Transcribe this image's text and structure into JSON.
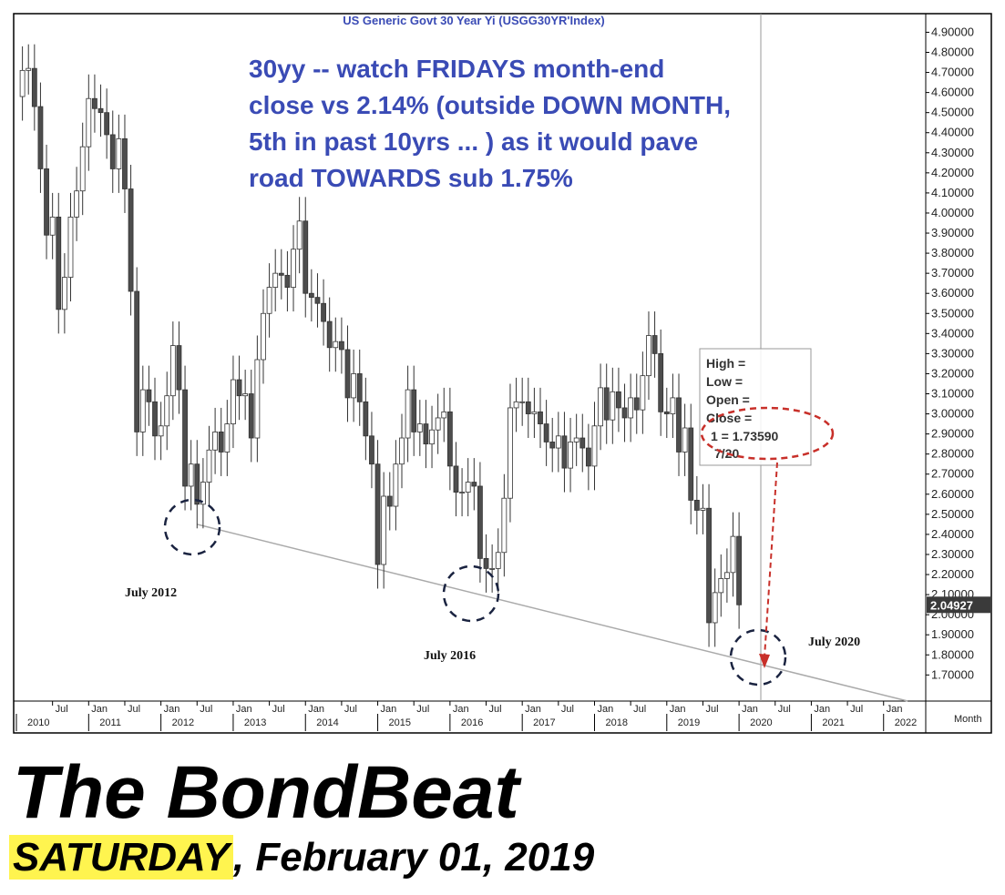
{
  "chart_data": {
    "type": "candlestick",
    "title": "US Generic Govt 30 Year Yi (USGG30YR'Index)",
    "xlabel": "Month",
    "annotation_lines": [
      "30yy -- watch FRIDAYS month-end",
      "close vs 2.14% (outside DOWN MONTH,",
      "5th in past 10yrs ... ) as it would pave",
      "road TOWARDS sub 1.75%"
    ],
    "labels": [
      "July 2012",
      "July 2016",
      "July 2020"
    ],
    "info_box": [
      "High =",
      "Low =",
      "Open =",
      "Close =",
      "1 = 1.73590",
      "7/20"
    ],
    "up_color": "#ffffff",
    "down_color": "#4d4d4d",
    "trendline_color": "#aaaaaa",
    "x": [
      "2010-02",
      "2010-03",
      "2010-04",
      "2010-05",
      "2010-06",
      "2010-07",
      "2010-08",
      "2010-09",
      "2010-10",
      "2010-11",
      "2010-12",
      "2011-01",
      "2011-02",
      "2011-03",
      "2011-04",
      "2011-05",
      "2011-06",
      "2011-07",
      "2011-08",
      "2011-09",
      "2011-10",
      "2011-11",
      "2011-12",
      "2012-01",
      "2012-02",
      "2012-03",
      "2012-04",
      "2012-05",
      "2012-06",
      "2012-07",
      "2012-08",
      "2012-09",
      "2012-10",
      "2012-11",
      "2012-12",
      "2013-01",
      "2013-02",
      "2013-03",
      "2013-04",
      "2013-05",
      "2013-06",
      "2013-07",
      "2013-08",
      "2013-09",
      "2013-10",
      "2013-11",
      "2013-12",
      "2014-01",
      "2014-02",
      "2014-03",
      "2014-04",
      "2014-05",
      "2014-06",
      "2014-07",
      "2014-08",
      "2014-09",
      "2014-10",
      "2014-11",
      "2014-12",
      "2015-01",
      "2015-02",
      "2015-03",
      "2015-04",
      "2015-05",
      "2015-06",
      "2015-07",
      "2015-08",
      "2015-09",
      "2015-10",
      "2015-11",
      "2015-12",
      "2016-01",
      "2016-02",
      "2016-03",
      "2016-04",
      "2016-05",
      "2016-06",
      "2016-07",
      "2016-08",
      "2016-09",
      "2016-10",
      "2016-11",
      "2016-12",
      "2017-01",
      "2017-02",
      "2017-03",
      "2017-04",
      "2017-05",
      "2017-06",
      "2017-07",
      "2017-08",
      "2017-09",
      "2017-10",
      "2017-11",
      "2017-12",
      "2018-01",
      "2018-02",
      "2018-03",
      "2018-04",
      "2018-05",
      "2018-06",
      "2018-07",
      "2018-08",
      "2018-09",
      "2018-10",
      "2018-11",
      "2018-12",
      "2019-01",
      "2019-02",
      "2019-03",
      "2019-04",
      "2019-05",
      "2019-06",
      "2019-07",
      "2019-08",
      "2019-09",
      "2019-10",
      "2019-11",
      "2019-12",
      "2020-01"
    ],
    "open": [
      4.58,
      4.71,
      4.72,
      4.53,
      4.22,
      3.89,
      3.98,
      3.52,
      3.68,
      3.98,
      4.11,
      4.33,
      4.57,
      4.52,
      4.5,
      4.39,
      4.22,
      4.37,
      4.12,
      3.61,
      2.91,
      3.12,
      3.06,
      2.89,
      2.94,
      3.09,
      3.34,
      3.12,
      2.64,
      2.75,
      2.55,
      2.66,
      2.82,
      2.91,
      2.81,
      2.95,
      3.17,
      3.09,
      3.1,
      2.88,
      3.27,
      3.5,
      3.63,
      3.7,
      3.69,
      3.63,
      3.82,
      3.96,
      3.6,
      3.58,
      3.55,
      3.46,
      3.33,
      3.36,
      3.32,
      3.08,
      3.2,
      3.06,
      2.89,
      2.75,
      2.25,
      2.59,
      2.54,
      2.75,
      2.88,
      3.12,
      2.91,
      2.95,
      2.85,
      2.92,
      2.98,
      3.01,
      2.74,
      2.61,
      2.61,
      2.66,
      2.64,
      2.28,
      2.23,
      2.23,
      2.31,
      2.58,
      3.03,
      3.06,
      3.06,
      3.0,
      3.01,
      2.95,
      2.86,
      2.83,
      2.89,
      2.73,
      2.86,
      2.88,
      2.83,
      2.74,
      2.94,
      3.13,
      2.97,
      3.11,
      3.03,
      2.98,
      3.08,
      3.02,
      3.19,
      3.39,
      3.3,
      3.01,
      3.0,
      3.08,
      2.81,
      2.93,
      2.57,
      2.52,
      2.53,
      1.96,
      2.11,
      2.18,
      2.21,
      2.39
    ],
    "high": [
      4.83,
      4.84,
      4.84,
      4.65,
      4.34,
      4.1,
      4.1,
      3.8,
      4.1,
      4.23,
      4.45,
      4.69,
      4.69,
      4.64,
      4.62,
      4.51,
      4.49,
      4.49,
      4.24,
      3.73,
      3.24,
      3.24,
      3.18,
      3.06,
      3.21,
      3.46,
      3.46,
      3.24,
      2.87,
      2.87,
      2.78,
      2.94,
      3.03,
      3.03,
      3.07,
      3.29,
      3.29,
      3.22,
      3.22,
      3.39,
      3.62,
      3.75,
      3.82,
      3.82,
      3.81,
      3.94,
      4.08,
      4.08,
      3.72,
      3.7,
      3.67,
      3.58,
      3.48,
      3.48,
      3.44,
      3.32,
      3.32,
      3.18,
      3.01,
      2.87,
      2.71,
      2.71,
      2.87,
      3.0,
      3.24,
      3.24,
      3.07,
      3.07,
      3.04,
      3.1,
      3.13,
      3.13,
      2.86,
      2.73,
      2.78,
      2.78,
      2.76,
      2.4,
      2.35,
      2.43,
      2.7,
      3.15,
      3.18,
      3.18,
      3.18,
      3.13,
      3.13,
      3.07,
      2.98,
      3.01,
      3.01,
      2.98,
      3.0,
      3.0,
      2.95,
      3.06,
      3.25,
      3.25,
      3.23,
      3.23,
      3.15,
      3.2,
      3.2,
      3.31,
      3.51,
      3.51,
      3.42,
      3.13,
      3.2,
      3.2,
      3.05,
      3.05,
      2.69,
      2.65,
      2.65,
      2.23,
      2.3,
      2.33,
      2.51,
      2.51
    ],
    "low": [
      4.46,
      4.59,
      4.41,
      4.1,
      3.77,
      3.77,
      3.4,
      3.4,
      3.56,
      3.86,
      3.99,
      4.21,
      4.4,
      4.38,
      4.27,
      4.1,
      4.1,
      4.0,
      3.49,
      2.79,
      2.79,
      2.94,
      2.77,
      2.77,
      2.82,
      2.97,
      3.0,
      2.52,
      2.52,
      2.43,
      2.43,
      2.54,
      2.7,
      2.69,
      2.69,
      2.83,
      2.97,
      2.97,
      2.76,
      2.76,
      3.15,
      3.38,
      3.51,
      3.57,
      3.51,
      3.51,
      3.7,
      3.48,
      3.46,
      3.43,
      3.34,
      3.21,
      3.21,
      3.2,
      2.96,
      2.96,
      2.94,
      2.77,
      2.63,
      2.13,
      2.13,
      2.42,
      2.42,
      2.63,
      2.76,
      2.79,
      2.79,
      2.73,
      2.73,
      2.8,
      2.86,
      2.62,
      2.49,
      2.49,
      2.49,
      2.52,
      2.16,
      2.11,
      2.11,
      2.11,
      2.19,
      2.46,
      2.91,
      2.94,
      2.88,
      2.88,
      2.83,
      2.74,
      2.71,
      2.71,
      2.61,
      2.61,
      2.74,
      2.71,
      2.62,
      2.62,
      2.82,
      2.85,
      2.85,
      2.91,
      2.86,
      2.86,
      2.9,
      2.9,
      3.07,
      3.18,
      2.89,
      2.88,
      2.88,
      2.69,
      2.69,
      2.45,
      2.4,
      2.4,
      1.84,
      1.84,
      1.99,
      2.06,
      2.09,
      1.93
    ],
    "close": [
      4.71,
      4.72,
      4.53,
      4.22,
      3.89,
      3.98,
      3.52,
      3.68,
      3.98,
      4.11,
      4.33,
      4.57,
      4.52,
      4.5,
      4.39,
      4.22,
      4.37,
      4.12,
      3.61,
      2.91,
      3.12,
      3.06,
      2.89,
      2.94,
      3.09,
      3.34,
      3.12,
      2.64,
      2.75,
      2.55,
      2.66,
      2.82,
      2.91,
      2.81,
      2.95,
      3.17,
      3.09,
      3.1,
      2.88,
      3.27,
      3.5,
      3.63,
      3.7,
      3.69,
      3.63,
      3.82,
      3.96,
      3.6,
      3.58,
      3.55,
      3.46,
      3.33,
      3.36,
      3.32,
      3.08,
      3.2,
      3.06,
      2.89,
      2.75,
      2.25,
      2.59,
      2.54,
      2.75,
      2.88,
      3.12,
      2.91,
      2.95,
      2.85,
      2.92,
      2.98,
      3.01,
      2.74,
      2.61,
      2.61,
      2.66,
      2.64,
      2.28,
      2.23,
      2.23,
      2.31,
      2.58,
      3.03,
      3.06,
      3.06,
      3.0,
      3.01,
      2.95,
      2.86,
      2.83,
      2.89,
      2.73,
      2.86,
      2.88,
      2.83,
      2.74,
      2.94,
      3.13,
      2.97,
      3.11,
      3.03,
      2.98,
      3.08,
      3.02,
      3.19,
      3.39,
      3.3,
      3.01,
      3.0,
      3.08,
      2.81,
      2.93,
      2.57,
      2.52,
      2.53,
      1.96,
      2.11,
      2.18,
      2.21,
      2.39,
      2.04927
    ],
    "trendline": {
      "x": [
        "2012-07",
        "2022-05"
      ],
      "values": [
        2.45,
        1.57
      ]
    },
    "xlim": [
      "2010-01",
      "2022-08"
    ],
    "xticks": [
      {
        "value": "2010-07",
        "label": "Jul"
      },
      {
        "value": "2011-01",
        "label": "Jan"
      },
      {
        "value": "2011-07",
        "label": "Jul"
      },
      {
        "value": "2012-01",
        "label": "Jan"
      },
      {
        "value": "2012-07",
        "label": "Jul"
      },
      {
        "value": "2013-01",
        "label": "Jan"
      },
      {
        "value": "2013-07",
        "label": "Jul"
      },
      {
        "value": "2014-01",
        "label": "Jan"
      },
      {
        "value": "2014-07",
        "label": "Jul"
      },
      {
        "value": "2015-01",
        "label": "Jan"
      },
      {
        "value": "2015-07",
        "label": "Jul"
      },
      {
        "value": "2016-01",
        "label": "Jan"
      },
      {
        "value": "2016-07",
        "label": "Jul"
      },
      {
        "value": "2017-01",
        "label": "Jan"
      },
      {
        "value": "2017-07",
        "label": "Jul"
      },
      {
        "value": "2018-01",
        "label": "Jan"
      },
      {
        "value": "2018-07",
        "label": "Jul"
      },
      {
        "value": "2019-01",
        "label": "Jan"
      },
      {
        "value": "2019-07",
        "label": "Jul"
      },
      {
        "value": "2020-01",
        "label": "Jan"
      },
      {
        "value": "2020-07",
        "label": "Jul"
      },
      {
        "value": "2021-01",
        "label": "Jan"
      },
      {
        "value": "2021-07",
        "label": "Jul"
      },
      {
        "value": "2022-01",
        "label": "Jan"
      }
    ],
    "year_ticks": [
      {
        "value": "2010-01",
        "label": "2010"
      },
      {
        "value": "2011-01",
        "label": "2011"
      },
      {
        "value": "2012-01",
        "label": "2012"
      },
      {
        "value": "2013-01",
        "label": "2013"
      },
      {
        "value": "2014-01",
        "label": "2014"
      },
      {
        "value": "2015-01",
        "label": "2015"
      },
      {
        "value": "2016-01",
        "label": "2016"
      },
      {
        "value": "2017-01",
        "label": "2017"
      },
      {
        "value": "2018-01",
        "label": "2018"
      },
      {
        "value": "2019-01",
        "label": "2019"
      },
      {
        "value": "2020-01",
        "label": "2020"
      },
      {
        "value": "2021-01",
        "label": "2021"
      },
      {
        "value": "2022-01",
        "label": "2022"
      }
    ],
    "ylim": [
      1.57,
      4.97
    ],
    "yticks": [
      {
        "value": 1.7,
        "label": "1.70000"
      },
      {
        "value": 1.8,
        "label": "1.80000"
      },
      {
        "value": 1.9,
        "label": "1.90000"
      },
      {
        "value": 2.0,
        "label": "2.00000"
      },
      {
        "value": 2.1,
        "label": "2.10000"
      },
      {
        "value": 2.2,
        "label": "2.20000"
      },
      {
        "value": 2.3,
        "label": "2.30000"
      },
      {
        "value": 2.4,
        "label": "2.40000"
      },
      {
        "value": 2.5,
        "label": "2.50000"
      },
      {
        "value": 2.6,
        "label": "2.60000"
      },
      {
        "value": 2.7,
        "label": "2.70000"
      },
      {
        "value": 2.8,
        "label": "2.80000"
      },
      {
        "value": 2.9,
        "label": "2.90000"
      },
      {
        "value": 3.0,
        "label": "3.00000"
      },
      {
        "value": 3.1,
        "label": "3.10000"
      },
      {
        "value": 3.2,
        "label": "3.20000"
      },
      {
        "value": 3.3,
        "label": "3.30000"
      },
      {
        "value": 3.4,
        "label": "3.40000"
      },
      {
        "value": 3.5,
        "label": "3.50000"
      },
      {
        "value": 3.6,
        "label": "3.60000"
      },
      {
        "value": 3.7,
        "label": "3.70000"
      },
      {
        "value": 3.8,
        "label": "3.80000"
      },
      {
        "value": 3.9,
        "label": "3.90000"
      },
      {
        "value": 4.0,
        "label": "4.00000"
      },
      {
        "value": 4.1,
        "label": "4.10000"
      },
      {
        "value": 4.2,
        "label": "4.20000"
      },
      {
        "value": 4.3,
        "label": "4.30000"
      },
      {
        "value": 4.4,
        "label": "4.40000"
      },
      {
        "value": 4.5,
        "label": "4.50000"
      },
      {
        "value": 4.6,
        "label": "4.60000"
      },
      {
        "value": 4.7,
        "label": "4.70000"
      },
      {
        "value": 4.8,
        "label": "4.80000"
      },
      {
        "value": 4.9,
        "label": "4.90000"
      }
    ],
    "grid": false
  },
  "footer": {
    "title": "The BondBeat",
    "day": "SATURDAY",
    "date": ", February 01, 2019"
  }
}
